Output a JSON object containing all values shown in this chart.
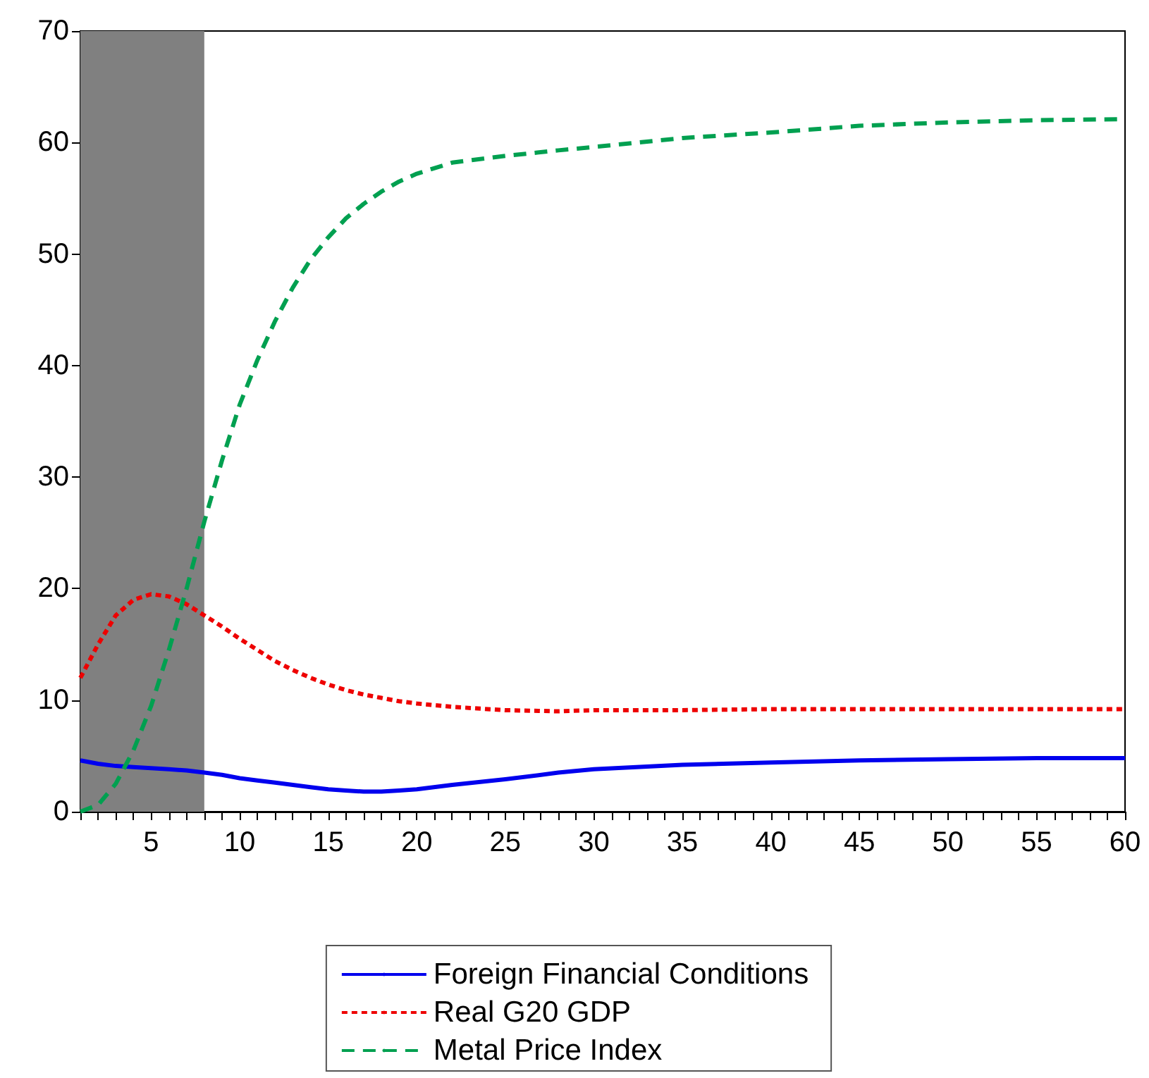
{
  "chart_data": {
    "type": "line",
    "x": [
      1,
      2,
      3,
      4,
      5,
      6,
      7,
      8,
      9,
      10,
      11,
      12,
      13,
      14,
      15,
      16,
      17,
      18,
      19,
      20,
      22,
      25,
      28,
      30,
      35,
      40,
      45,
      50,
      55,
      60
    ],
    "series": [
      {
        "name": "Foreign Financial Conditions",
        "color": "#0000ee",
        "line_style": "solid",
        "values": [
          4.6,
          4.3,
          4.1,
          4.0,
          3.9,
          3.8,
          3.7,
          3.5,
          3.3,
          3.0,
          2.8,
          2.6,
          2.4,
          2.2,
          2.0,
          1.9,
          1.8,
          1.8,
          1.9,
          2.0,
          2.4,
          2.9,
          3.5,
          3.8,
          4.2,
          4.4,
          4.6,
          4.7,
          4.8,
          4.8
        ]
      },
      {
        "name": "Real G20 GDP",
        "color": "#ee0000",
        "line_style": "dotted",
        "values": [
          12.0,
          15.0,
          17.6,
          19.0,
          19.5,
          19.3,
          18.6,
          17.6,
          16.6,
          15.5,
          14.5,
          13.5,
          12.7,
          12.0,
          11.4,
          10.9,
          10.5,
          10.2,
          9.9,
          9.7,
          9.4,
          9.1,
          9.0,
          9.1,
          9.1,
          9.2,
          9.2,
          9.2,
          9.2,
          9.2
        ]
      },
      {
        "name": "Metal Price Index",
        "color": "#00a050",
        "line_style": "dashed",
        "values": [
          0,
          0.6,
          2.5,
          5.5,
          9.5,
          14.5,
          20,
          26,
          31.5,
          36.5,
          40.5,
          44,
          47,
          49.5,
          51.5,
          53.2,
          54.5,
          55.6,
          56.5,
          57.2,
          58.2,
          58.8,
          59.3,
          59.6,
          60.4,
          60.9,
          61.5,
          61.8,
          62.0,
          62.1
        ]
      }
    ],
    "xlim": [
      1,
      60
    ],
    "xticks": [
      {
        "value": 1,
        "label": null
      },
      {
        "value": 2,
        "label": null
      },
      {
        "value": 3,
        "label": null
      },
      {
        "value": 4,
        "label": null
      },
      5,
      {
        "value": 6,
        "label": null
      },
      {
        "value": 7,
        "label": null
      },
      {
        "value": 8,
        "label": null
      },
      {
        "value": 9,
        "label": null
      },
      10,
      {
        "value": 11,
        "label": null
      },
      {
        "value": 12,
        "label": null
      },
      {
        "value": 13,
        "label": null
      },
      {
        "value": 14,
        "label": null
      },
      15,
      {
        "value": 16,
        "label": null
      },
      {
        "value": 17,
        "label": null
      },
      {
        "value": 18,
        "label": null
      },
      {
        "value": 19,
        "label": null
      },
      20,
      {
        "value": 21,
        "label": null
      },
      {
        "value": 22,
        "label": null
      },
      {
        "value": 23,
        "label": null
      },
      {
        "value": 24,
        "label": null
      },
      25,
      {
        "value": 26,
        "label": null
      },
      {
        "value": 27,
        "label": null
      },
      {
        "value": 28,
        "label": null
      },
      {
        "value": 29,
        "label": null
      },
      30,
      {
        "value": 31,
        "label": null
      },
      {
        "value": 32,
        "label": null
      },
      {
        "value": 33,
        "label": null
      },
      {
        "value": 34,
        "label": null
      },
      35,
      {
        "value": 36,
        "label": null
      },
      {
        "value": 37,
        "label": null
      },
      {
        "value": 38,
        "label": null
      },
      {
        "value": 39,
        "label": null
      },
      40,
      {
        "value": 41,
        "label": null
      },
      {
        "value": 42,
        "label": null
      },
      {
        "value": 43,
        "label": null
      },
      {
        "value": 44,
        "label": null
      },
      45,
      {
        "value": 46,
        "label": null
      },
      {
        "value": 47,
        "label": null
      },
      {
        "value": 48,
        "label": null
      },
      {
        "value": 49,
        "label": null
      },
      50,
      {
        "value": 51,
        "label": null
      },
      {
        "value": 52,
        "label": null
      },
      {
        "value": 53,
        "label": null
      },
      {
        "value": 54,
        "label": null
      },
      55,
      {
        "value": 56,
        "label": null
      },
      {
        "value": 57,
        "label": null
      },
      {
        "value": 58,
        "label": null
      },
      {
        "value": 59,
        "label": null
      },
      60
    ],
    "ylim": [
      0,
      70
    ],
    "yticks": [
      0,
      10,
      20,
      30,
      40,
      50,
      60,
      70
    ],
    "bands": [
      {
        "axis": "x",
        "from": 1,
        "to": 8,
        "color": "#808080"
      }
    ],
    "grid": false,
    "legend": "bottom",
    "marker": "none"
  }
}
